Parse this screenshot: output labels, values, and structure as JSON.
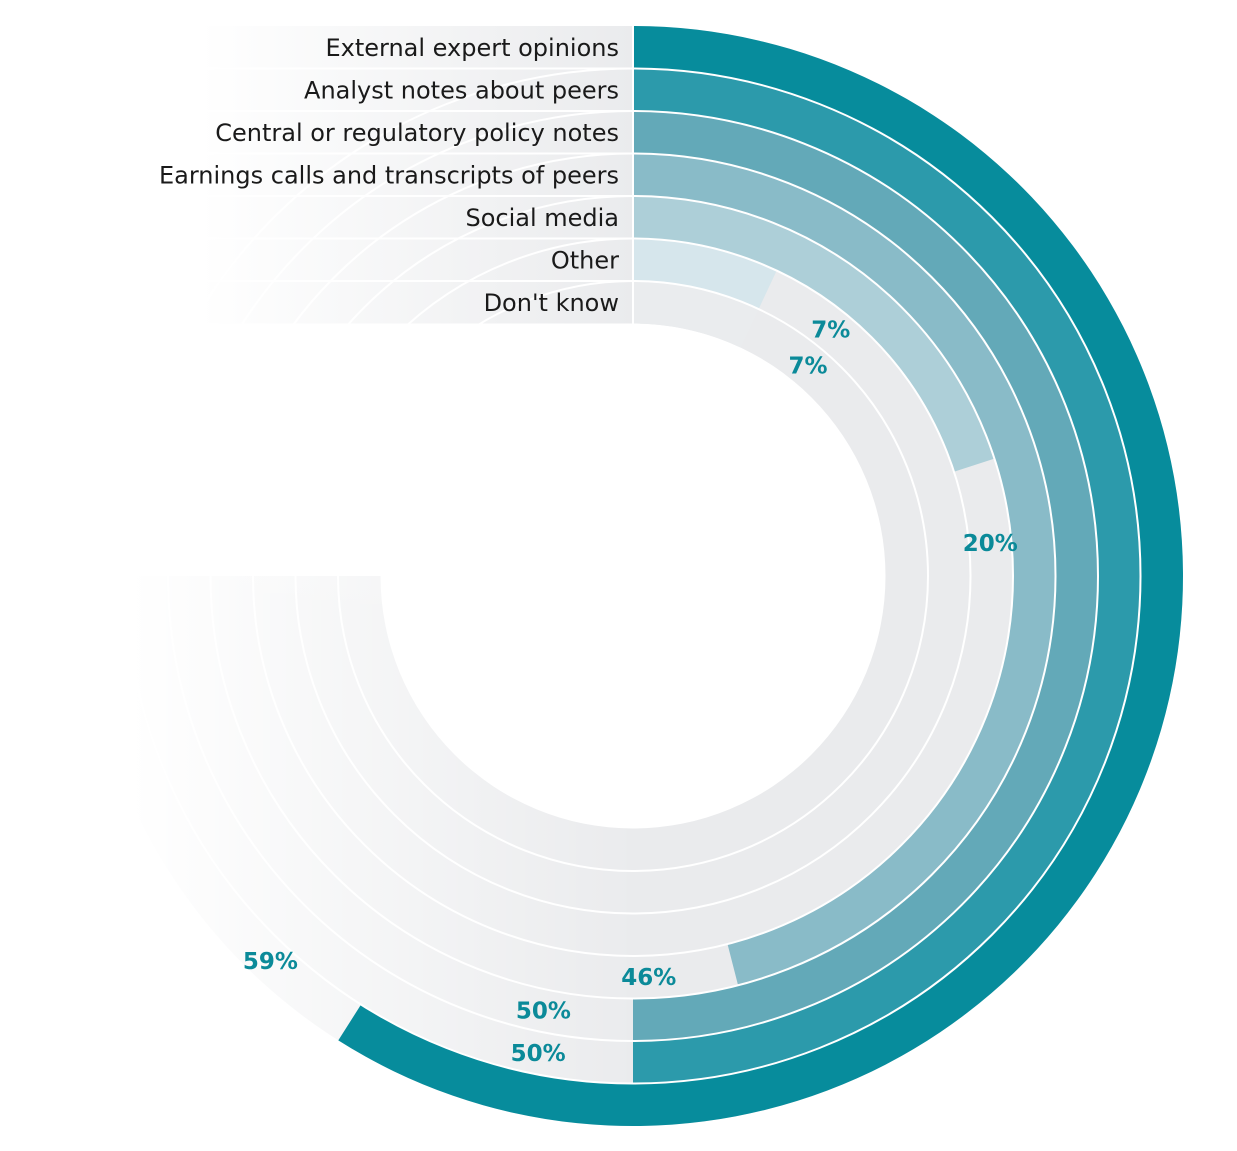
{
  "chart_data": {
    "type": "radial-bar",
    "title": "",
    "max_percent": 75,
    "categories": [
      "External expert opinions",
      "Analyst notes about peers",
      "Central or regulatory policy notes",
      "Earnings calls and transcripts of peers",
      "Social media",
      "Other",
      "Don't know"
    ],
    "values": [
      59,
      50,
      50,
      46,
      20,
      7,
      7
    ],
    "value_labels": [
      "59%",
      "50%",
      "50%",
      "46%",
      "20%",
      "7%",
      "7%"
    ],
    "colors": [
      "#078c9c",
      "#2c9aab",
      "#63a9b8",
      "#89bbc8",
      "#adcfd8",
      "#d6e6ec",
      "#eaecee"
    ],
    "track_color": "#eaebed",
    "value_label_color": "#0b8a99"
  }
}
